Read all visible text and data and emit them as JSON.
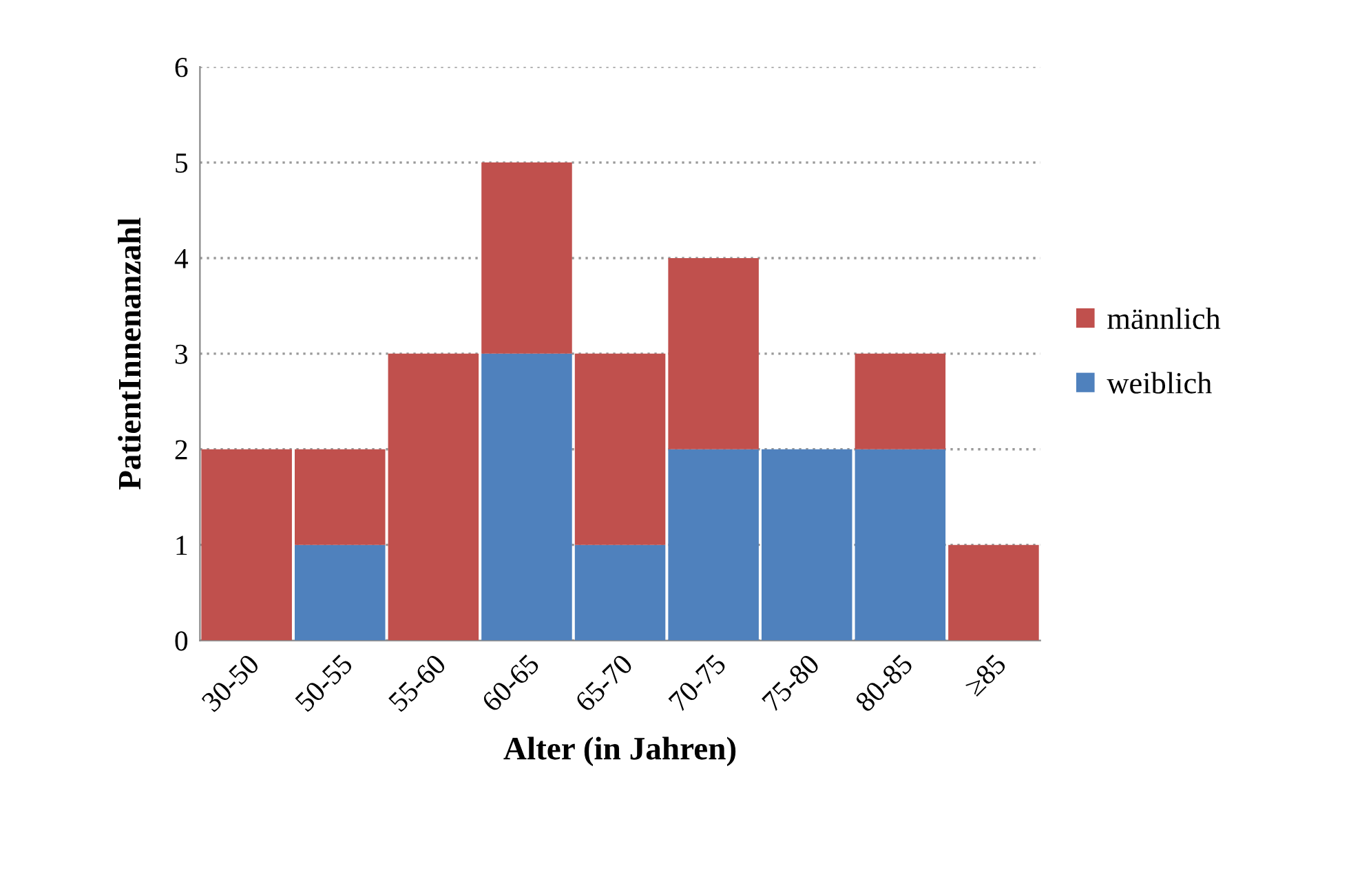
{
  "chart_data": {
    "type": "bar",
    "stacked": true,
    "xlabel": "Alter (in Jahren)",
    "ylabel": "PatientInnenanzahl",
    "categories": [
      "30-50",
      "50-55",
      "55-60",
      "60-65",
      "65-70",
      "70-75",
      "75-80",
      "80-85",
      "≥85"
    ],
    "series": [
      {
        "name": "weiblich",
        "color": "#4f81bd",
        "values": [
          0,
          1,
          0,
          3,
          1,
          2,
          2,
          2,
          0
        ]
      },
      {
        "name": "männlich",
        "color": "#c0504d",
        "values": [
          2,
          1,
          3,
          2,
          2,
          2,
          0,
          1,
          1
        ]
      }
    ],
    "ylim": [
      0,
      6
    ],
    "yticks": [
      0,
      1,
      2,
      3,
      4,
      5,
      6
    ],
    "grid": "y",
    "legend": "right"
  }
}
